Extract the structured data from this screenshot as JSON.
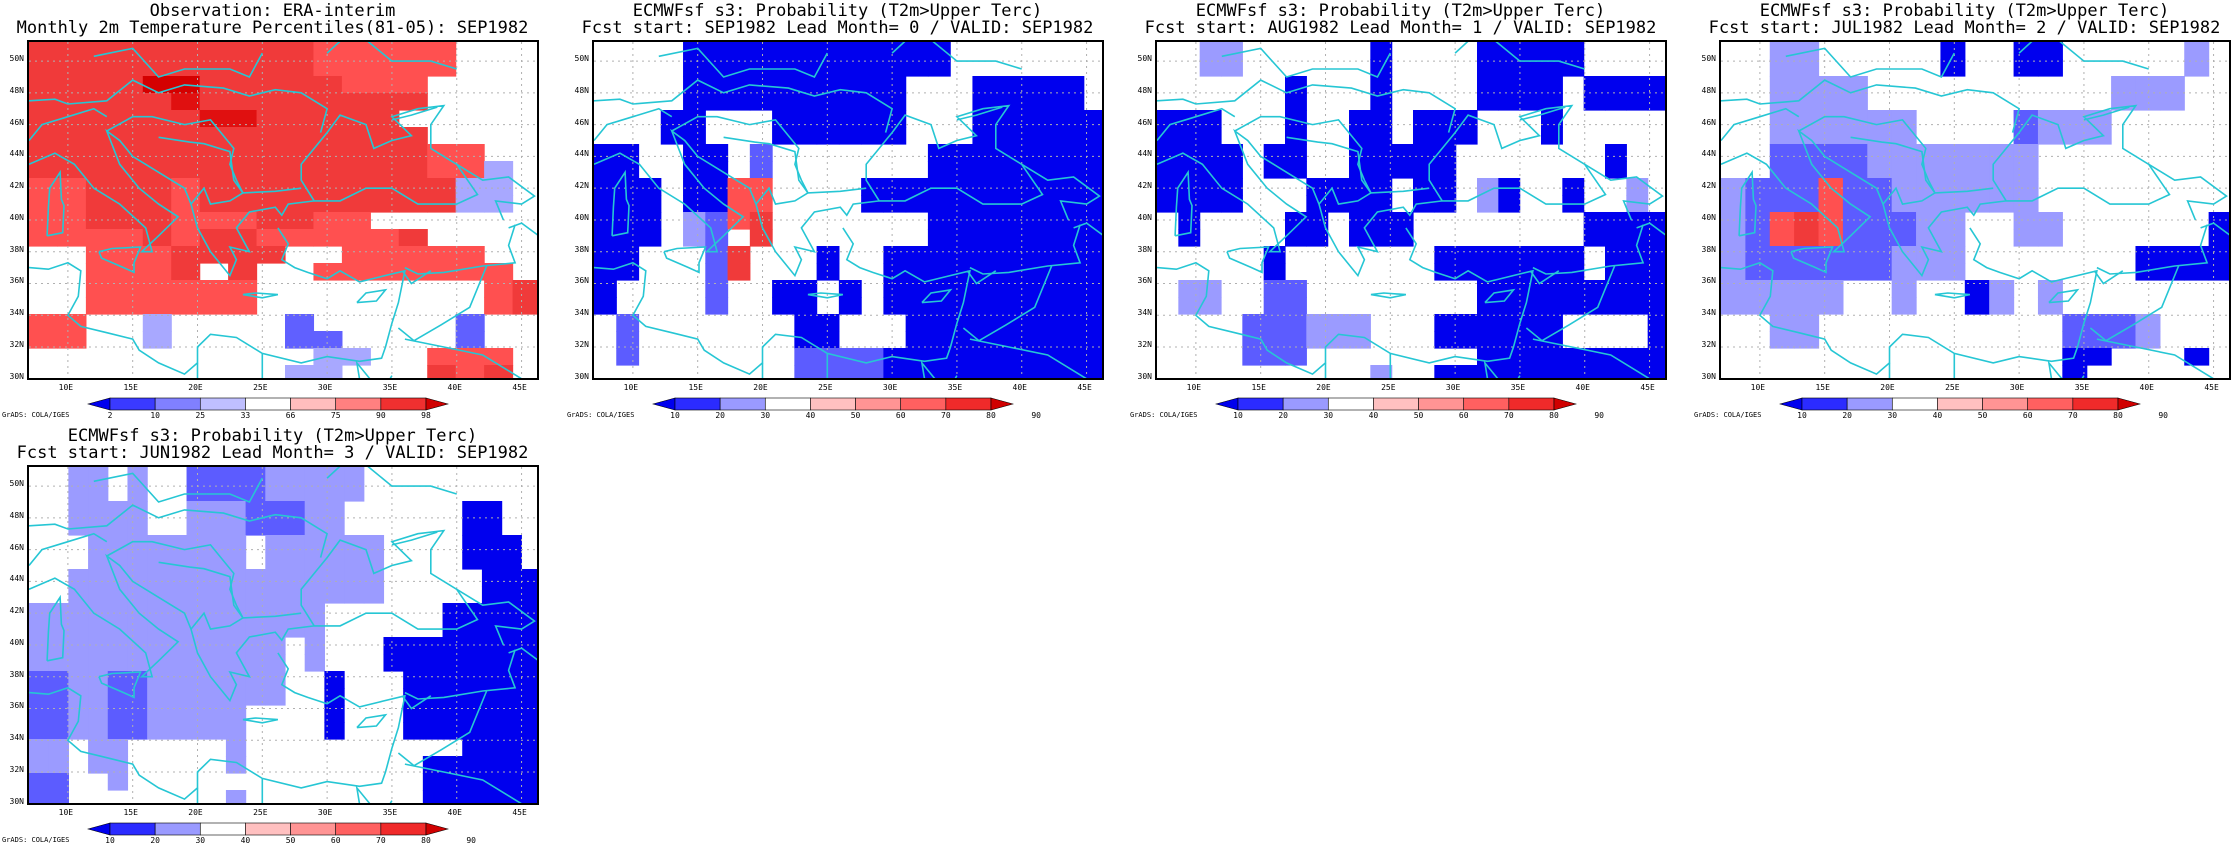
{
  "panels": [
    {
      "title1": "Observation: ERA-interim",
      "title2": "Monthly 2m Temperature Percentiles(81-05): SEP1982",
      "colorbar": {
        "ticks": [
          "2",
          "10",
          "25",
          "33",
          "66",
          "75",
          "90",
          "98"
        ],
        "colors": [
          "#0000ee",
          "#3a3aff",
          "#8080ff",
          "#bfbfff",
          "#ffffff",
          "#ffbdbd",
          "#ff8080",
          "#f03030",
          "#d00000"
        ]
      },
      "credit": "GrADS: COLA/IGES",
      "grid": [
        "444444444433333...",
        "444444444433333...",
        "44446644444333....",
        "44444544444444....",
        "4444445544444.....",
        "44444444444444....",
        "4444444444444433",
        "44444444444444331",
        "33444344444444411",
        "33444344444444411",
        "334443334433.....",
        "33334344333334..",
        "..3334444..33333..",
        "..3334.4..3333333.",
        "..333333........34",
        "..333333........34",
        "33..1....2.....2..",
        "33..1....22....2..",
        "..........11..333",
        ".........11...434"
      ]
    },
    {
      "title1": "ECMWFsf s3: Probability (T2m>Upper Terc)",
      "title2": "Fcst start: SEP1982  Lead Month= 0 / VALID: SEP1982",
      "colorbar": {
        "ticks": [
          "10",
          "20",
          "30",
          "40",
          "50",
          "60",
          "70",
          "80",
          "90"
        ],
        "colors": [
          "#0000ee",
          "#2b2bff",
          "#9a9aff",
          "#ffffff",
          "#ffc0c0",
          "#ff9494",
          "#ff6060",
          "#f02a2a",
          "#d00000"
        ]
      },
      "credit": "GrADS: COLA/IGES",
      "grid": [
        "....DDDDDDDDDDDD.......",
        "....DDDDDDDDDDDD.......",
        "....DDDDDDDDDD...DDDDD.",
        "....DDDDDDDDDD...DDDDD.",
        "...DD...DDDDDD...DDDDDD",
        "...DD...DDDDDD...DDDDDD",
        "DD..DD.2.......DDDDDDDD",
        "DD..DD.2.......DDDDDDDD",
        "DDD.DD33....DDDDDDDDDDD",
        "DDD.DD33....DDDDDDDDDDD",
        "DDD.1234.......DDDDDDDD",
        "DDD.12.4.......DDDDDDDD",
        "DD...24...D..DDDDDDDDDD",
        "DD...24...D..DDDDDDDDDD",
        "D....2..DD.D.DDDDDDDDDD",
        "D....2..DD.D.DDDDDDDDDD",
        ".2.......DD...DDDDDDDDD",
        ".2.......DD...DDDDDDDDD",
        ".2.......2222DDDDDDDDDD",
        ".........2222DDDDDDDDDD"
      ]
    },
    {
      "title1": "ECMWFsf s3: Probability (T2m>Upper Terc)",
      "title2": "Fcst start: AUG1982  Lead Month= 1 / VALID: SEP1982",
      "colorbar": {
        "ticks": [
          "10",
          "20",
          "30",
          "40",
          "50",
          "60",
          "70",
          "80",
          "90"
        ],
        "colors": [
          "#0000ee",
          "#2b2bff",
          "#9a9aff",
          "#ffffff",
          "#ffc0c0",
          "#ff9494",
          "#ff6060",
          "#f02a2a",
          "#d00000"
        ]
      },
      "credit": "GrADS: COLA/IGES",
      "grid": [
        "..11......D....DDDDD....",
        "..11......D....DDDDD....",
        "......D...D....DDDD.DDDD",
        "......D...D....DDDD.DDDD",
        "DDD...D..DD.DDD...D.....",
        "DDD...D..DD.DDD...D.....",
        "DDDD.DD..DDDDD.......D..",
        "DDDD.DD..DDDDD.......D..",
        "DDDD...DDDD.DD.1D..D..1.",
        "DDDD...DDDD.DD.1D..D..1.",
        ".D....DD.DDD........DDDD",
        ".D....DD.DDD........DDDD",
        ".....D.......DDDDDDD.DDD",
        ".....D.......DDDDDDD.DDD",
        ".11..22........DDDDDDDDD",
        ".11..22........DDDDDDDDD",
        "....222111...DDDDDD....D",
        "....222111...DDDDDD....D",
        "....222........DDDDDDDDD",
        "..........1..DDDDDDDDDDD"
      ]
    },
    {
      "title1": "ECMWFsf s3: Probability (T2m>Upper Terc)",
      "title2": "Fcst start: JUL1982  Lead Month= 2 / VALID: SEP1982",
      "colorbar": {
        "ticks": [
          "10",
          "20",
          "30",
          "40",
          "50",
          "60",
          "70",
          "80",
          "90"
        ],
        "colors": [
          "#0000ee",
          "#2b2bff",
          "#9a9aff",
          "#ffffff",
          "#ffc0c0",
          "#ff9494",
          "#ff6060",
          "#f02a2a",
          "#d00000"
        ]
      },
      "credit": "GrADS: COLA/IGES",
      "grid": [
        "..11.....D..DD.....1.",
        "..11.....D..DD.....1.",
        "..1111..........111..",
        "..1111..........111..",
        "..111111....2111.....",
        "..111111....2111.....",
        "..22221111111........",
        "..22221111111........",
        "1222322111111........",
        "1222322111111........",
        "1234322211..11......D",
        "1234322211..11......D",
        "1222222111.......DDDD",
        "1222222111.......DDDD",
        "11111..1..D1.1......",
        "11111..1..D1.1......",
        "..11..........2221..",
        "..11..........2221..",
        "..............DD...D",
        "..............D....."
      ]
    },
    {
      "title1": "ECMWFsf s3: Probability (T2m>Upper Terc)",
      "title2": "Fcst start: JUN1982  Lead Month= 3 / VALID: SEP1982",
      "colorbar": {
        "ticks": [
          "10",
          "20",
          "30",
          "40",
          "50",
          "60",
          "70",
          "80",
          "90"
        ],
        "colors": [
          "#0000ee",
          "#2b2bff",
          "#9a9aff",
          "#ffffff",
          "#ffc0c0",
          "#ff9494",
          "#ff6060",
          "#f02a2a",
          "#d00000"
        ]
      },
      "credit": "GrADS: COLA/IGES",
      "grid": [
        "..11.1..222211111........",
        "..11.1..222211111........",
        "..1111..11122211......DD..",
        "..1111..11122211......DD..",
        "...11111111.111111....DDD.",
        "...11111111.111111....DDD.",
        "..1111111111111111.....DDD",
        "..1111111111111111.....DDD",
        "111111111111111......DDDDD",
        "111111111111111......DDDDD",
        "1111111111111.1...DDDDDDDD",
        "1111111111111.1...DDDDDDDD",
        "2211221111111..D...DDDDDDD",
        "2211221111111..D...DDDDDDD",
        "22112211111....D...DDDDDDD",
        "22112211111....D...DDDDDDD",
        "11.11.....1...........DDDD",
        "11.11.....1.........DDDDDD",
        "22..1...............DDDDDD",
        "22........1.........DDDDDD"
      ]
    }
  ],
  "axes": {
    "lat_labels": [
      "50N",
      "48N",
      "46N",
      "44N",
      "42N",
      "40N",
      "38N",
      "36N",
      "34N",
      "32N",
      "30N"
    ],
    "lon_labels": [
      "10E",
      "15E",
      "20E",
      "25E",
      "30E",
      "35E",
      "40E",
      "45E"
    ],
    "lat_values": [
      50,
      48,
      46,
      44,
      42,
      40,
      38,
      36,
      34,
      32,
      30
    ],
    "lon_values": [
      10,
      15,
      20,
      25,
      30,
      35,
      40,
      45
    ],
    "lon_range": [
      7,
      46.5
    ],
    "lat_range": [
      29.8,
      51.2
    ]
  },
  "style": {
    "coast_color": "#26c6d4",
    "grid_color": "#b0b0b0"
  }
}
